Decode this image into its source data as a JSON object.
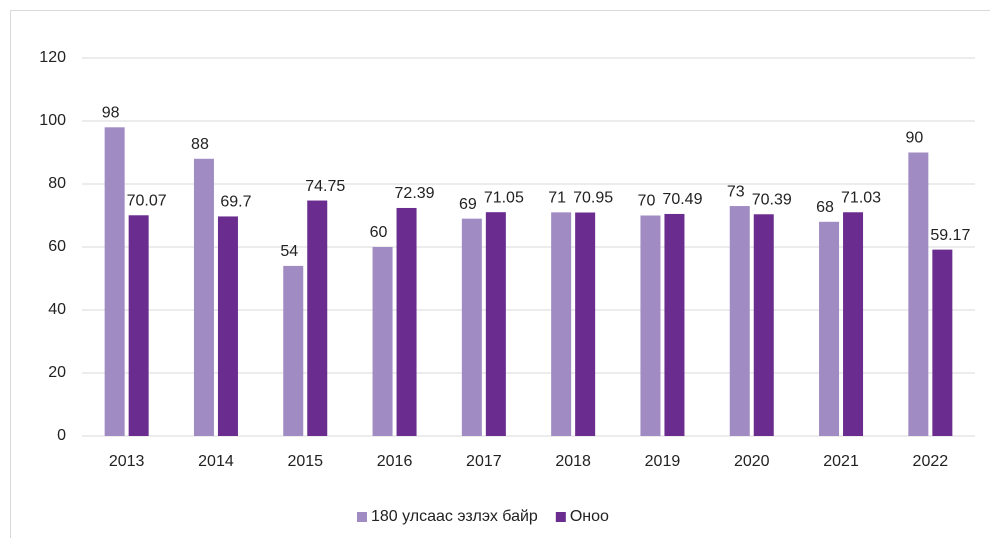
{
  "chart_data": {
    "type": "bar",
    "categories": [
      "2013",
      "2014",
      "2015",
      "2016",
      "2017",
      "2018",
      "2019",
      "2020",
      "2021",
      "2022"
    ],
    "series": [
      {
        "name": "180 улсаас эзлэх байр",
        "color": "#a08bc2",
        "values": [
          98,
          88,
          54,
          60,
          69,
          71,
          70,
          73,
          68,
          90
        ]
      },
      {
        "name": "Оноо",
        "color": "#6a2c8e",
        "values": [
          70.07,
          69.7,
          74.75,
          72.39,
          71.05,
          70.95,
          70.49,
          70.39,
          71.03,
          59.17
        ]
      }
    ],
    "ylim": [
      0,
      120
    ],
    "yticks": [
      0,
      20,
      40,
      60,
      80,
      100,
      120
    ],
    "grid": true,
    "legend": "bottom"
  }
}
